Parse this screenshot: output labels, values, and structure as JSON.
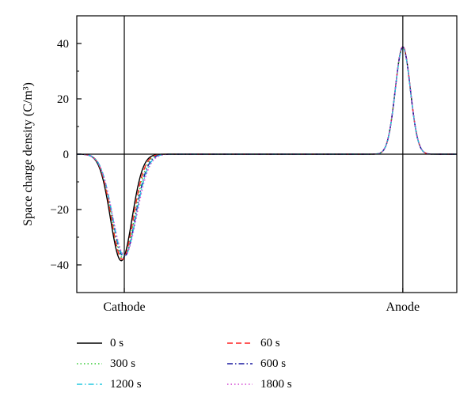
{
  "chart_data": {
    "type": "line",
    "title": "",
    "xlabel": "",
    "ylabel": "Space charge density (C/m³)",
    "ylim": [
      -50,
      50
    ],
    "xlim": [
      0,
      1
    ],
    "yticks": [
      -40,
      -20,
      0,
      20,
      40
    ],
    "ytick_labels": [
      "−40",
      "−20",
      "0",
      "20",
      "40"
    ],
    "x_annotations": [
      {
        "label": "Cathode",
        "x": 0.125
      },
      {
        "label": "Anode",
        "x": 0.858
      }
    ],
    "grid": false,
    "legend_placement": "bottom",
    "series": [
      {
        "name": "0 s",
        "color": "#000000",
        "dash": "solid",
        "cathode_peak_x": 0.117,
        "cathode_peak": -38.5,
        "cathode_width": 0.04,
        "anode_peak_x": 0.858,
        "anode_peak": 38.8,
        "anode_width": 0.028
      },
      {
        "name": "60 s",
        "color": "#ff2020",
        "dash": "dashed",
        "cathode_peak_x": 0.12,
        "cathode_peak": -38.0,
        "cathode_width": 0.041,
        "anode_peak_x": 0.858,
        "anode_peak": 38.9,
        "anode_width": 0.028
      },
      {
        "name": "300 s",
        "color": "#33cc33",
        "dash": "dotted",
        "cathode_peak_x": 0.122,
        "cathode_peak": -37.6,
        "cathode_width": 0.042,
        "anode_peak_x": 0.858,
        "anode_peak": 38.6,
        "anode_width": 0.028
      },
      {
        "name": "600 s",
        "color": "#1a1aa0",
        "dash": "dashdot",
        "cathode_peak_x": 0.124,
        "cathode_peak": -37.2,
        "cathode_width": 0.043,
        "anode_peak_x": 0.858,
        "anode_peak": 38.7,
        "anode_width": 0.028
      },
      {
        "name": "1200 s",
        "color": "#22c8e0",
        "dash": "dashdot",
        "cathode_peak_x": 0.125,
        "cathode_peak": -36.8,
        "cathode_width": 0.044,
        "anode_peak_x": 0.858,
        "anode_peak": 38.5,
        "anode_width": 0.028
      },
      {
        "name": "1800 s",
        "color": "#d23fd2",
        "dash": "dotted",
        "cathode_peak_x": 0.126,
        "cathode_peak": -36.5,
        "cathode_width": 0.045,
        "anode_peak_x": 0.858,
        "anode_peak": 38.9,
        "anode_width": 0.028
      }
    ],
    "legend_order": [
      "0 s",
      "60 s",
      "300 s",
      "600 s",
      "1200 s",
      "1800 s"
    ]
  }
}
